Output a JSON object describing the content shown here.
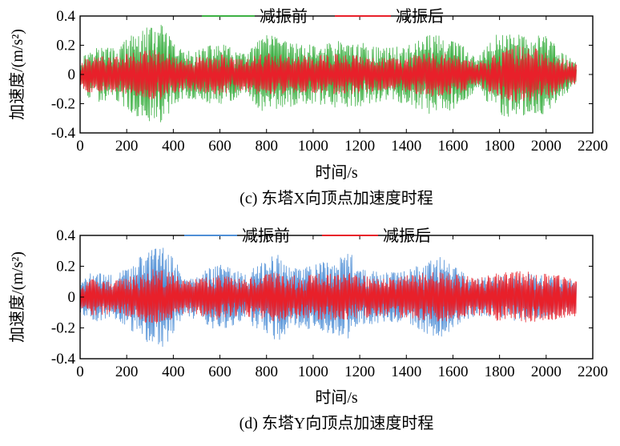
{
  "charts": [
    {
      "id": "c",
      "caption": "(c) 东塔X向顶点加速度时程",
      "chart_data": {
        "type": "line",
        "title": "",
        "xlabel": "时间/s",
        "ylabel": "加速度/(m/s²)",
        "xlim": [
          0,
          2200
        ],
        "ylim": [
          -0.4,
          0.4
        ],
        "x_ticks": [
          "0",
          "200",
          "400",
          "600",
          "800",
          "1000",
          "1200",
          "1400",
          "1600",
          "1800",
          "2000",
          "2200"
        ],
        "y_ticks": [
          "0.4",
          "0.2",
          "0",
          "-0.2",
          "-0.4"
        ],
        "x_range_of_data": [
          0,
          2130
        ],
        "legend_position": "top",
        "series": [
          {
            "name": "减振前",
            "color": "#3cb043",
            "envelope_x": [
              0,
              50,
              150,
              250,
              300,
              350,
              400,
              450,
              500,
              600,
              700,
              800,
              900,
              1000,
              1100,
              1200,
              1300,
              1400,
              1500,
              1550,
              1650,
              1700,
              1800,
              1850,
              1900,
              2000,
              2050,
              2130
            ],
            "envelope_amp": [
              0.1,
              0.2,
              0.18,
              0.3,
              0.33,
              0.34,
              0.22,
              0.16,
              0.17,
              0.22,
              0.14,
              0.28,
              0.22,
              0.2,
              0.23,
              0.22,
              0.18,
              0.2,
              0.28,
              0.27,
              0.2,
              0.1,
              0.3,
              0.29,
              0.28,
              0.27,
              0.18,
              0.08
            ]
          },
          {
            "name": "减振后",
            "color": "#e8202a",
            "envelope_x": [
              0,
              50,
              150,
              250,
              300,
              350,
              400,
              450,
              500,
              600,
              700,
              800,
              900,
              1000,
              1100,
              1200,
              1300,
              1400,
              1500,
              1550,
              1650,
              1700,
              1800,
              1850,
              1900,
              2000,
              2050,
              2130
            ],
            "envelope_amp": [
              0.08,
              0.14,
              0.12,
              0.16,
              0.17,
              0.17,
              0.13,
              0.11,
              0.12,
              0.14,
              0.11,
              0.15,
              0.13,
              0.13,
              0.14,
              0.13,
              0.11,
              0.12,
              0.15,
              0.15,
              0.12,
              0.08,
              0.16,
              0.2,
              0.19,
              0.17,
              0.13,
              0.07
            ]
          }
        ]
      }
    },
    {
      "id": "d",
      "caption": "(d) 东塔Y向顶点加速度时程",
      "chart_data": {
        "type": "line",
        "title": "",
        "xlabel": "时间/s",
        "ylabel": "加速度/(m/s²)",
        "xlim": [
          0,
          2200
        ],
        "ylim": [
          -0.4,
          0.4
        ],
        "x_ticks": [
          "0",
          "200",
          "400",
          "600",
          "800",
          "1000",
          "1200",
          "1400",
          "1600",
          "1800",
          "2000",
          "2200"
        ],
        "y_ticks": [
          "0.4",
          "0.2",
          "0",
          "-0.2",
          "-0.4"
        ],
        "x_range_of_data": [
          0,
          2130
        ],
        "legend_position": "top",
        "series": [
          {
            "name": "减振前",
            "color": "#4f8fd6",
            "envelope_x": [
              0,
              50,
              150,
              250,
              300,
              340,
              400,
              450,
              500,
              600,
              700,
              800,
              850,
              900,
              1000,
              1100,
              1150,
              1200,
              1300,
              1400,
              1500,
              1550,
              1650,
              1700,
              1800,
              1900,
              2000,
              2130
            ],
            "envelope_amp": [
              0.1,
              0.16,
              0.14,
              0.25,
              0.32,
              0.34,
              0.26,
              0.12,
              0.15,
              0.23,
              0.15,
              0.24,
              0.29,
              0.2,
              0.22,
              0.24,
              0.31,
              0.2,
              0.16,
              0.17,
              0.25,
              0.26,
              0.15,
              0.12,
              0.14,
              0.16,
              0.14,
              0.1
            ]
          },
          {
            "name": "减振后",
            "color": "#e8202a",
            "envelope_x": [
              0,
              50,
              150,
              250,
              300,
              340,
              400,
              450,
              500,
              600,
              700,
              800,
              850,
              900,
              1000,
              1100,
              1150,
              1200,
              1300,
              1400,
              1500,
              1550,
              1650,
              1700,
              1800,
              1900,
              2000,
              2130
            ],
            "envelope_amp": [
              0.08,
              0.12,
              0.11,
              0.15,
              0.18,
              0.18,
              0.16,
              0.1,
              0.12,
              0.15,
              0.12,
              0.15,
              0.16,
              0.14,
              0.15,
              0.15,
              0.16,
              0.14,
              0.12,
              0.14,
              0.16,
              0.17,
              0.14,
              0.12,
              0.16,
              0.17,
              0.15,
              0.13
            ]
          }
        ]
      }
    }
  ]
}
